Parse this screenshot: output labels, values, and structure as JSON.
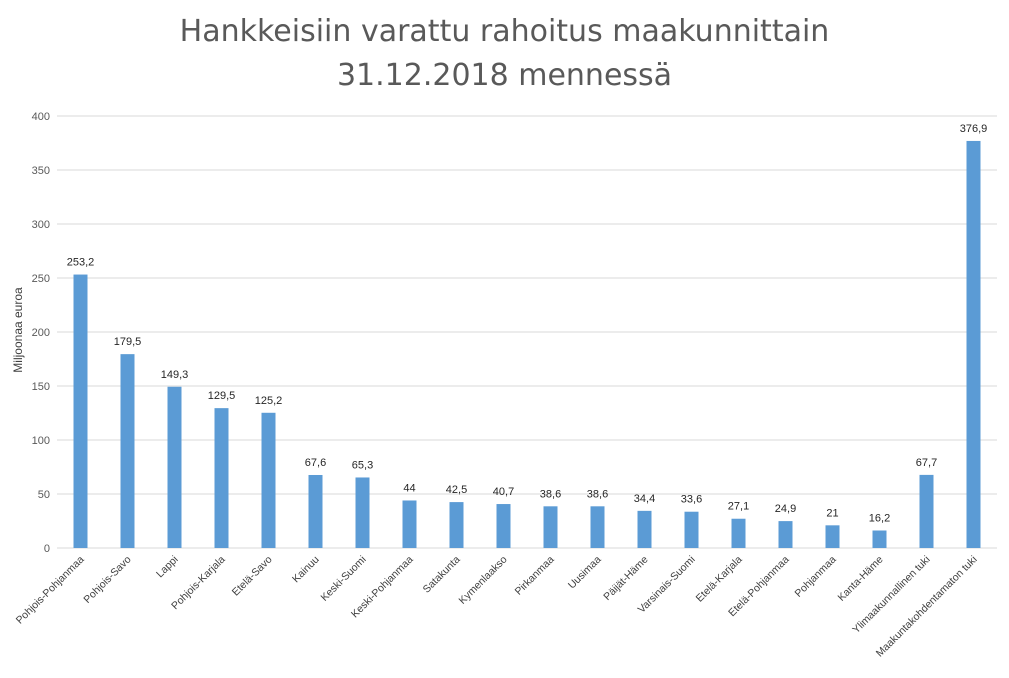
{
  "chart_data": {
    "type": "bar",
    "title_lines": [
      "Hankkeisiin varattu rahoitus maakunnittain",
      "31.12.2018 mennessä"
    ],
    "ylabel": "Miljoonaa euroa",
    "xlabel": "",
    "ylim": [
      0,
      400
    ],
    "yticks": [
      "0",
      "50",
      "100",
      "150",
      "200",
      "250",
      "300",
      "350",
      "400"
    ],
    "grid": true,
    "legend": "none",
    "bar_color": "#5b9bd5",
    "categories": [
      "Pohjois-Pohjanmaa",
      "Pohjois-Savo",
      "Lappi",
      "Pohjois-Karjala",
      "Etelä-Savo",
      "Kainuu",
      "Keski-Suomi",
      "Keski-Pohjanmaa",
      "Satakunta",
      "Kymenlaakso",
      "Pirkanmaa",
      "Uusimaa",
      "Päijät-Häme",
      "Varsinais-Suomi",
      "Etelä-Karjala",
      "Etelä-Pohjanmaa",
      "Pohjanmaa",
      "Kanta-Häme",
      "Ylimaakunnallinen tuki",
      "Maakuntakohdentamaton tuki"
    ],
    "values": [
      253.2,
      179.5,
      149.3,
      129.5,
      125.2,
      67.6,
      65.3,
      44,
      42.5,
      40.7,
      38.6,
      38.6,
      34.4,
      33.6,
      27.1,
      24.9,
      21,
      16.2,
      67.7,
      376.9
    ],
    "value_labels": [
      "253,2",
      "179,5",
      "149,3",
      "129,5",
      "125,2",
      "67,6",
      "65,3",
      "44",
      "42,5",
      "40,7",
      "38,6",
      "38,6",
      "34,4",
      "33,6",
      "27,1",
      "24,9",
      "21",
      "16,2",
      "67,7",
      "376,9"
    ]
  }
}
